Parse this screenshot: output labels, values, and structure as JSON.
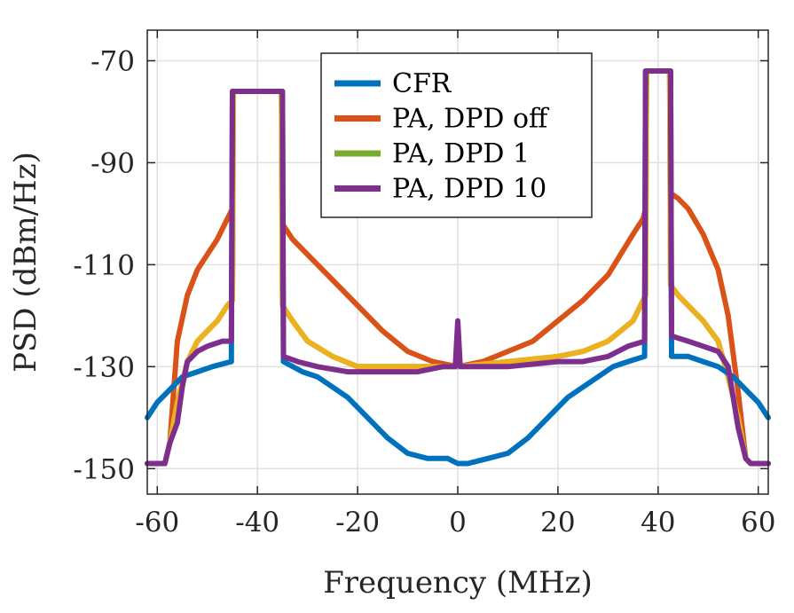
{
  "chart_data": {
    "type": "line",
    "title": "",
    "xlabel": "Frequency (MHz)",
    "ylabel": "PSD (dBm/Hz)",
    "xlim": [
      -62,
      62
    ],
    "ylim": [
      -155,
      -64
    ],
    "xticks": [
      -60,
      -40,
      -20,
      0,
      20,
      40,
      60
    ],
    "yticks": [
      -150,
      -130,
      -110,
      -90,
      -70
    ],
    "xtick_labels": [
      "-60",
      "-40",
      "-20",
      "0",
      "20",
      "40",
      "60"
    ],
    "ytick_labels": [
      "-150",
      "-130",
      "-110",
      "-90",
      "-70"
    ],
    "grid": true,
    "legend_position": "top-center",
    "series": [
      {
        "name": "PA, DPD off",
        "color": "#D95319",
        "points": [
          [
            -62,
            -149
          ],
          [
            -58.5,
            -149
          ],
          [
            -57.5,
            -145
          ],
          [
            -56,
            -125
          ],
          [
            -54,
            -116
          ],
          [
            -52,
            -111
          ],
          [
            -50,
            -108
          ],
          [
            -48,
            -105
          ],
          [
            -46,
            -101
          ],
          [
            -45,
            -99
          ],
          [
            -44.8,
            -76
          ],
          [
            -35.2,
            -76
          ],
          [
            -35,
            -102
          ],
          [
            -33,
            -105
          ],
          [
            -30,
            -108
          ],
          [
            -25,
            -113
          ],
          [
            -20,
            -118
          ],
          [
            -15,
            -123
          ],
          [
            -10,
            -127
          ],
          [
            -5,
            -129
          ],
          [
            0,
            -130
          ],
          [
            5,
            -129
          ],
          [
            10,
            -127
          ],
          [
            15,
            -125
          ],
          [
            20,
            -121
          ],
          [
            25,
            -117
          ],
          [
            30,
            -112
          ],
          [
            35,
            -104
          ],
          [
            37,
            -101
          ],
          [
            37.5,
            -99
          ],
          [
            37.7,
            -72
          ],
          [
            42.3,
            -72
          ],
          [
            42.5,
            -96
          ],
          [
            44,
            -97
          ],
          [
            46,
            -99
          ],
          [
            49,
            -104
          ],
          [
            52,
            -111
          ],
          [
            54,
            -120
          ],
          [
            56,
            -135
          ],
          [
            57.5,
            -148
          ],
          [
            58.5,
            -149
          ],
          [
            62,
            -149
          ]
        ]
      },
      {
        "name": "PA, DPD 1",
        "color": "#77AC30",
        "points": [
          [
            -62,
            -149
          ],
          [
            -58.5,
            -149
          ],
          [
            -57.5,
            -145
          ],
          [
            -56,
            -137
          ],
          [
            -54,
            -129
          ],
          [
            -52,
            -125
          ],
          [
            -50,
            -123
          ],
          [
            -48,
            -121
          ],
          [
            -46,
            -118
          ],
          [
            -45,
            -117
          ],
          [
            -44.8,
            -76
          ],
          [
            -35.2,
            -76
          ],
          [
            -35,
            -118
          ],
          [
            -33,
            -121
          ],
          [
            -30,
            -125
          ],
          [
            -25,
            -128
          ],
          [
            -20,
            -130
          ],
          [
            -10,
            -130
          ],
          [
            0,
            -130
          ],
          [
            10,
            -129
          ],
          [
            20,
            -128
          ],
          [
            25,
            -127
          ],
          [
            30,
            -125
          ],
          [
            35,
            -121
          ],
          [
            37,
            -117
          ],
          [
            37.5,
            -116
          ],
          [
            37.7,
            -72
          ],
          [
            42.3,
            -72
          ],
          [
            42.5,
            -114
          ],
          [
            44,
            -116
          ],
          [
            46,
            -118
          ],
          [
            49,
            -121
          ],
          [
            52,
            -125
          ],
          [
            54,
            -132
          ],
          [
            56,
            -140
          ],
          [
            57.5,
            -148
          ],
          [
            58.5,
            -149
          ],
          [
            62,
            -149
          ]
        ]
      },
      {
        "name": "",
        "color": "#EDB120",
        "points": [
          [
            -62,
            -149
          ],
          [
            -58.5,
            -149
          ],
          [
            -57.5,
            -145
          ],
          [
            -56,
            -137
          ],
          [
            -54,
            -129
          ],
          [
            -52,
            -125
          ],
          [
            -50,
            -123
          ],
          [
            -48,
            -121
          ],
          [
            -46,
            -118
          ],
          [
            -45,
            -117
          ],
          [
            -44.8,
            -76
          ],
          [
            -35.2,
            -76
          ],
          [
            -35,
            -118
          ],
          [
            -33,
            -121
          ],
          [
            -30,
            -125
          ],
          [
            -25,
            -128
          ],
          [
            -20,
            -130
          ],
          [
            -10,
            -130
          ],
          [
            0,
            -130
          ],
          [
            10,
            -129
          ],
          [
            20,
            -128
          ],
          [
            25,
            -127
          ],
          [
            30,
            -125
          ],
          [
            35,
            -121
          ],
          [
            37,
            -117
          ],
          [
            37.5,
            -116
          ],
          [
            37.7,
            -72
          ],
          [
            42.3,
            -72
          ],
          [
            42.5,
            -114
          ],
          [
            44,
            -116
          ],
          [
            46,
            -118
          ],
          [
            49,
            -121
          ],
          [
            52,
            -125
          ],
          [
            54,
            -132
          ],
          [
            56,
            -140
          ],
          [
            57.5,
            -148
          ],
          [
            58.5,
            -149
          ],
          [
            62,
            -149
          ]
        ]
      },
      {
        "name": "CFR",
        "color": "#0072BD",
        "points": [
          [
            -62,
            -140
          ],
          [
            -60,
            -137
          ],
          [
            -58,
            -135
          ],
          [
            -55,
            -132
          ],
          [
            -52,
            -131
          ],
          [
            -49,
            -130
          ],
          [
            -45.2,
            -129
          ],
          [
            -45,
            -76
          ],
          [
            -35,
            -76
          ],
          [
            -34.8,
            -129
          ],
          [
            -31,
            -131
          ],
          [
            -28,
            -132
          ],
          [
            -25,
            -134
          ],
          [
            -22,
            -136
          ],
          [
            -18,
            -140
          ],
          [
            -14,
            -144
          ],
          [
            -10,
            -147
          ],
          [
            -6,
            -148
          ],
          [
            -2,
            -148
          ],
          [
            0,
            -149
          ],
          [
            2,
            -149
          ],
          [
            6,
            -148
          ],
          [
            10,
            -147
          ],
          [
            14,
            -144
          ],
          [
            18,
            -140
          ],
          [
            22,
            -136
          ],
          [
            25,
            -134
          ],
          [
            28,
            -132
          ],
          [
            31,
            -130
          ],
          [
            34,
            -129
          ],
          [
            37.3,
            -128
          ],
          [
            37.5,
            -72
          ],
          [
            42.5,
            -72
          ],
          [
            42.7,
            -128
          ],
          [
            46,
            -128
          ],
          [
            49,
            -129
          ],
          [
            52,
            -130
          ],
          [
            55,
            -132
          ],
          [
            58,
            -135
          ],
          [
            60,
            -137
          ],
          [
            62,
            -140
          ]
        ]
      },
      {
        "name": "PA, DPD 10",
        "color": "#7E2F8E",
        "points": [
          [
            -62,
            -149
          ],
          [
            -58.5,
            -149
          ],
          [
            -57.5,
            -145
          ],
          [
            -56,
            -141
          ],
          [
            -55,
            -134
          ],
          [
            -54,
            -129
          ],
          [
            -52,
            -127
          ],
          [
            -50,
            -126
          ],
          [
            -47,
            -125
          ],
          [
            -45.2,
            -125
          ],
          [
            -45,
            -76
          ],
          [
            -35,
            -76
          ],
          [
            -34.8,
            -128
          ],
          [
            -32,
            -129
          ],
          [
            -28,
            -130
          ],
          [
            -22,
            -131
          ],
          [
            -15,
            -131
          ],
          [
            -8,
            -131
          ],
          [
            -3,
            -130
          ],
          [
            -0.5,
            -130
          ],
          [
            0,
            -121
          ],
          [
            0.5,
            -130
          ],
          [
            3,
            -130
          ],
          [
            10,
            -130
          ],
          [
            20,
            -129
          ],
          [
            25,
            -129
          ],
          [
            30,
            -128
          ],
          [
            34,
            -126
          ],
          [
            37.3,
            -125
          ],
          [
            37.5,
            -72
          ],
          [
            42.5,
            -72
          ],
          [
            42.7,
            -124
          ],
          [
            46,
            -125
          ],
          [
            49,
            -126
          ],
          [
            52,
            -127
          ],
          [
            54,
            -130
          ],
          [
            56,
            -142
          ],
          [
            57.5,
            -148
          ],
          [
            58.5,
            -149
          ],
          [
            62,
            -149
          ]
        ]
      }
    ],
    "legend": [
      {
        "label": "CFR",
        "color": "#0072BD"
      },
      {
        "label": "PA, DPD off",
        "color": "#D95319"
      },
      {
        "label": "PA, DPD 1",
        "color": "#77AC30"
      },
      {
        "label": "PA, DPD 10",
        "color": "#7E2F8E"
      }
    ]
  }
}
